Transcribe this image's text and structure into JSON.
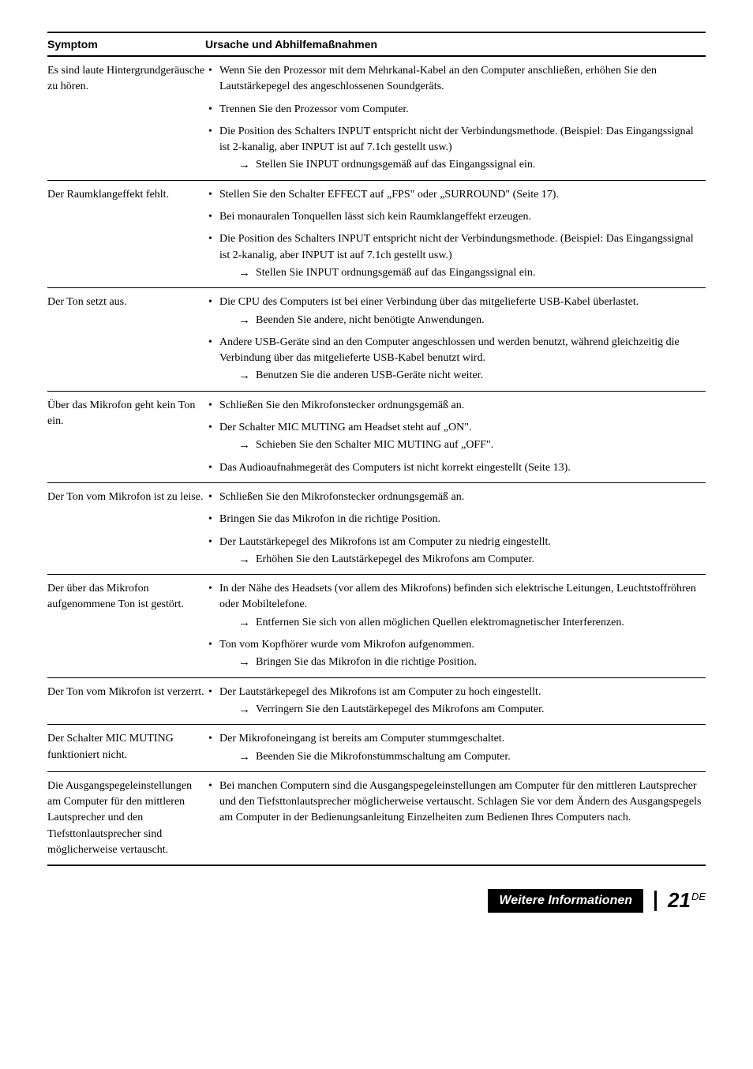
{
  "headers": {
    "symptom": "Symptom",
    "cause": "Ursache und Abhilfemaßnahmen"
  },
  "rows": [
    {
      "symptom": "Es sind laute Hintergrundgeräusche zu hören.",
      "causes": [
        {
          "text": "Wenn Sie den Prozessor mit dem Mehrkanal-Kabel an den Computer anschließen, erhöhen Sie den Lautstärkepegel des angeschlossenen Soundgeräts."
        },
        {
          "text": "Trennen Sie den Prozessor vom Computer."
        },
        {
          "text": "Die Position des Schalters INPUT entspricht nicht der Verbindungsmethode. (Beispiel: Das Eingangssignal ist 2-kanalig, aber INPUT ist auf 7.1ch gestellt usw.)",
          "arrows": [
            "Stellen Sie INPUT ordnungsgemäß auf das Eingangssignal ein."
          ]
        }
      ]
    },
    {
      "symptom": "Der Raumklangeffekt fehlt.",
      "causes": [
        {
          "text": "Stellen Sie den Schalter EFFECT auf „FPS\" oder „SURROUND\" (Seite 17)."
        },
        {
          "text": "Bei monauralen Tonquellen lässt sich kein Raumklangeffekt erzeugen."
        },
        {
          "text": "Die Position des Schalters INPUT entspricht nicht der Verbindungsmethode. (Beispiel: Das Eingangssignal ist 2-kanalig, aber INPUT ist auf 7.1ch gestellt usw.)",
          "arrows": [
            "Stellen Sie INPUT ordnungsgemäß auf das Eingangssignal ein."
          ]
        }
      ]
    },
    {
      "symptom": "Der Ton setzt aus.",
      "causes": [
        {
          "text": "Die CPU des Computers ist bei einer Verbindung über das mitgelieferte USB-Kabel überlastet.",
          "arrows": [
            "Beenden Sie andere, nicht benötigte Anwendungen."
          ]
        },
        {
          "text": "Andere USB-Geräte sind an den Computer angeschlossen und werden benutzt, während gleichzeitig die Verbindung über das mitgelieferte USB-Kabel benutzt wird.",
          "arrows": [
            "Benutzen Sie die anderen USB-Geräte nicht weiter."
          ]
        }
      ]
    },
    {
      "symptom": "Über das Mikrofon geht kein Ton ein.",
      "causes": [
        {
          "text": "Schließen Sie den Mikrofonstecker ordnungsgemäß an."
        },
        {
          "text": "Der Schalter MIC MUTING am Headset steht auf „ON\".",
          "arrows": [
            "Schieben Sie den Schalter MIC MUTING auf „OFF\"."
          ]
        },
        {
          "text": "Das Audioaufnahmegerät des Computers ist nicht korrekt eingestellt (Seite 13)."
        }
      ]
    },
    {
      "symptom": "Der Ton vom Mikrofon ist zu leise.",
      "causes": [
        {
          "text": "Schließen Sie den Mikrofonstecker ordnungsgemäß an."
        },
        {
          "text": "Bringen Sie das Mikrofon in die richtige Position."
        },
        {
          "text": "Der Lautstärkepegel des Mikrofons ist am Computer zu niedrig eingestellt.",
          "arrows": [
            "Erhöhen Sie den Lautstärkepegel des Mikrofons am Computer."
          ]
        }
      ]
    },
    {
      "symptom": "Der über das Mikrofon aufgenommene Ton ist gestört.",
      "causes": [
        {
          "text": "In der Nähe des Headsets (vor allem des Mikrofons) befinden sich elektrische Leitungen, Leuchtstoffröhren oder Mobiltelefone.",
          "arrows": [
            "Entfernen Sie sich von allen möglichen Quellen elektromagnetischer Interferenzen."
          ]
        },
        {
          "text": "Ton vom Kopfhörer wurde vom Mikrofon aufgenommen.",
          "arrows": [
            "Bringen Sie das Mikrofon in die richtige Position."
          ]
        }
      ]
    },
    {
      "symptom": "Der Ton vom Mikrofon ist verzerrt.",
      "causes": [
        {
          "text": "Der Lautstärkepegel des Mikrofons ist am Computer zu hoch eingestellt.",
          "arrows": [
            "Verringern Sie den Lautstärkepegel des Mikrofons am Computer."
          ]
        }
      ]
    },
    {
      "symptom": "Der Schalter MIC MUTING funktioniert nicht.",
      "causes": [
        {
          "text": "Der Mikrofoneingang ist bereits am Computer stummgeschaltet.",
          "arrows": [
            "Beenden Sie die Mikrofonstummschaltung am Computer."
          ]
        }
      ]
    },
    {
      "symptom": "Die Ausgangspegeleinstellungen am Computer für den mittleren Lautsprecher und den Tiefsttonlautsprecher sind möglicherweise vertauscht.",
      "causes": [
        {
          "text": "Bei manchen Computern sind die Ausgangspegeleinstellungen am Computer für den mittleren Lautsprecher und den Tiefsttonlautsprecher möglicherweise vertauscht. Schlagen Sie vor dem Ändern des Ausgangspegels am Computer in der Bedienungsanleitung Einzelheiten zum Bedienen Ihres Computers nach."
        }
      ]
    }
  ],
  "footer": {
    "section": "Weitere Informationen",
    "page": "21",
    "lang": "DE"
  }
}
